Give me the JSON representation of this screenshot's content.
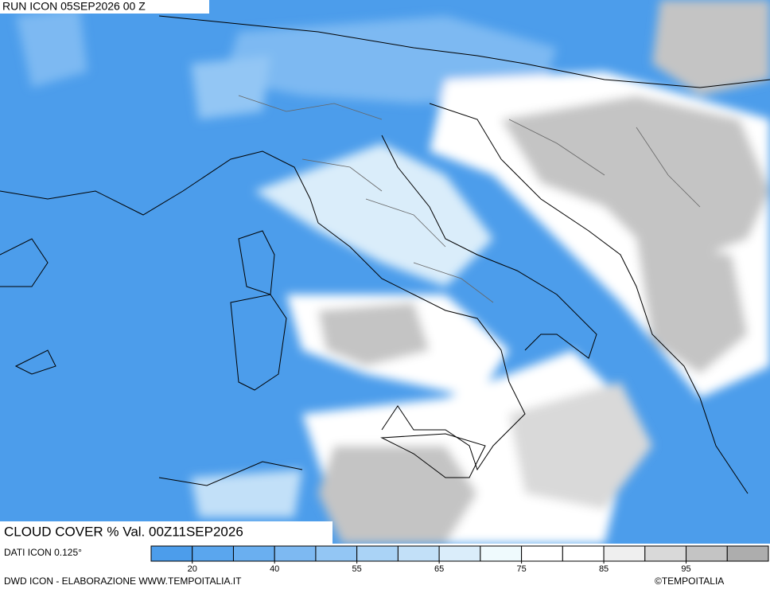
{
  "header": {
    "run": "RUN ICON 05SEP2026 00 Z"
  },
  "map": {
    "title": "CLOUD COVER % Val. 00Z11SEP2026"
  },
  "legend": {
    "colors": [
      "#4c9deb",
      "#5aa6ee",
      "#6aaff0",
      "#7db9f2",
      "#93c6f4",
      "#aad3f6",
      "#c2e0f8",
      "#daedfa",
      "#effafd",
      "#ffffff",
      "#ffffff",
      "#efefef",
      "#d9d9d9",
      "#c4c4c4",
      "#adadad"
    ],
    "ticks": [
      20,
      40,
      55,
      65,
      75,
      85,
      95
    ]
  },
  "footer": {
    "data_source": "DATI ICON 0.125°",
    "credits": "DWD ICON - ELABORAZIONE WWW.TEMPOITALIA.IT",
    "copyright": "©TEMPOITALIA"
  }
}
